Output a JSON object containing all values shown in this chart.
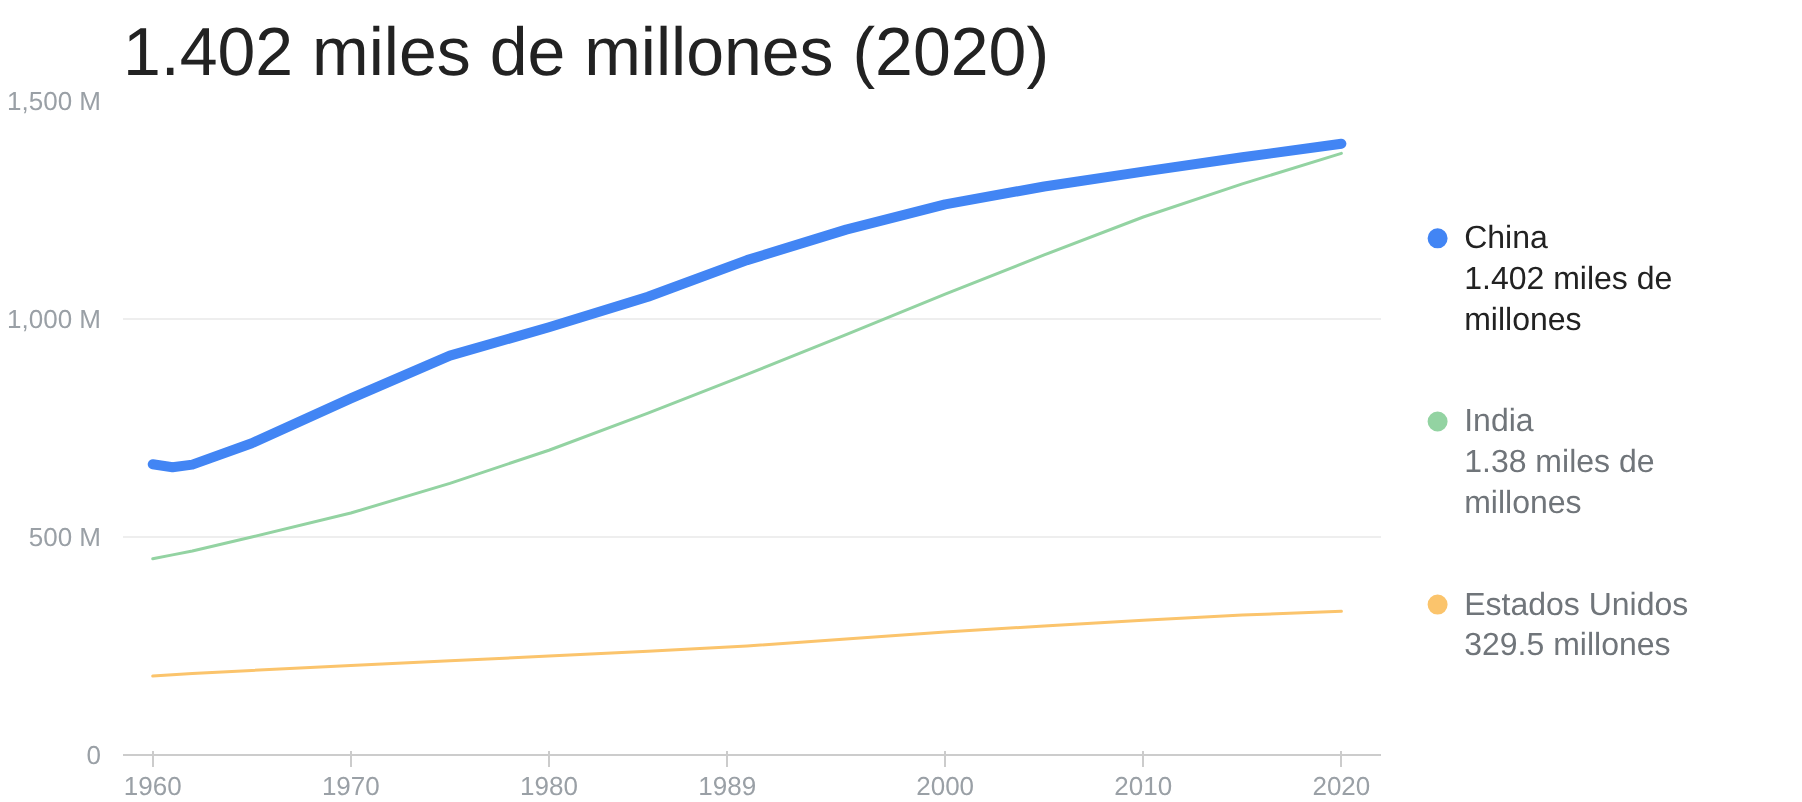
{
  "chart_data": {
    "type": "line",
    "title": "1.402 miles de millones (2020)",
    "x": [
      1960,
      1961,
      1962,
      1965,
      1970,
      1975,
      1980,
      1985,
      1990,
      1995,
      2000,
      2005,
      2010,
      2015,
      2020
    ],
    "series": [
      {
        "name": "China",
        "color": "#4285f4",
        "values": [
          667,
          660,
          666,
          715,
          818,
          916,
          981,
          1051,
          1135,
          1205,
          1263,
          1304,
          1338,
          1371,
          1402
        ]
      },
      {
        "name": "India",
        "color": "#93d3a2",
        "values": [
          450,
          459,
          468,
          500,
          555,
          623,
          699,
          784,
          873,
          964,
          1057,
          1147,
          1234,
          1310,
          1380
        ]
      },
      {
        "name": "Estados Unidos",
        "color": "#fbc46c",
        "values": [
          181,
          184,
          187,
          194,
          205,
          216,
          227,
          238,
          250,
          266,
          282,
          296,
          309,
          321,
          329.5
        ]
      }
    ],
    "annotations": [
      "1.402 miles de millones",
      "1.38 miles de millones",
      "329.5 millones"
    ],
    "xlim": [
      1958.5,
      2022
    ],
    "ylim": [
      0,
      1500
    ],
    "xticks": [
      1960,
      1970,
      1980,
      1989,
      2000,
      2010,
      2020
    ],
    "yticks": [
      0,
      {
        "value": 500,
        "label": "500 M"
      },
      {
        "value": 1000,
        "label": "1,000 M"
      },
      {
        "value": 1500,
        "label": "1,500 M"
      }
    ],
    "grid": "y",
    "legend": "right"
  }
}
